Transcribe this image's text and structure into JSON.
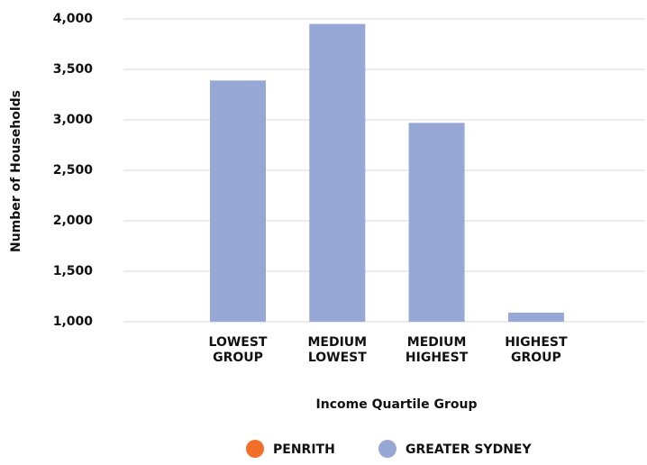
{
  "chart_data": {
    "type": "bar",
    "y_label": "Number of Households",
    "x_label": "Income Quartile Group",
    "categories": [
      [
        "LOWEST",
        "GROUP"
      ],
      [
        "MEDIUM",
        "LOWEST"
      ],
      [
        "MEDIUM",
        "HIGHEST"
      ],
      [
        "HIGHEST",
        "GROUP"
      ]
    ],
    "series": [
      {
        "name": "PENRITH",
        "color": "#f26f2a",
        "values": [
          null,
          null,
          null,
          null
        ]
      },
      {
        "name": "GREATER SYDNEY",
        "color": "#97a8d7",
        "values": [
          3390,
          3950,
          2970,
          1090
        ]
      }
    ],
    "ylim": [
      1000,
      4000
    ],
    "yticks": [
      {
        "value": 1000,
        "label": "1,000"
      },
      {
        "value": 1500,
        "label": "1,500"
      },
      {
        "value": 2000,
        "label": "2,000"
      },
      {
        "value": 2500,
        "label": "2,500"
      },
      {
        "value": 3000,
        "label": "3,000"
      },
      {
        "value": 3500,
        "label": "3,500"
      },
      {
        "value": 4000,
        "label": "4,000"
      }
    ],
    "grid": true
  }
}
